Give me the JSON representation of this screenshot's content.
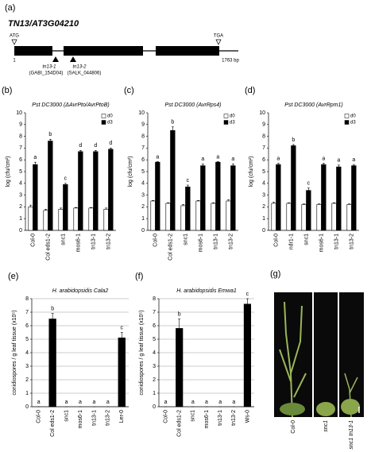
{
  "gene_diagram": {
    "label": "(a)",
    "title": "TN13/AT3G04210",
    "start_codon": "ATG",
    "stop_codon": "TGA",
    "start_pos": "1",
    "length": "1763 bp",
    "insertions": [
      {
        "name": "tn13-1",
        "line": "(GABI_154D04)"
      },
      {
        "name": "tn13-2",
        "line": "(SALK_044806)"
      }
    ]
  },
  "chart_data": [
    {
      "type": "bar",
      "label": "(b)",
      "title": "Pst DC3000 (ΔAvrPto/AvrPtoB)",
      "y_label": "log (cfu/cm²)",
      "categories": [
        "Col-0",
        "Col eds1-2",
        "snc1",
        "mos6-1",
        "tn13-1",
        "tn13-2"
      ],
      "series": [
        {
          "name": "d0",
          "color": "#ffffff",
          "values": [
            2.0,
            1.7,
            1.8,
            1.9,
            1.9,
            1.8
          ],
          "errors": [
            0.15,
            0.1,
            0.1,
            0.05,
            0.05,
            0.1
          ]
        },
        {
          "name": "d3",
          "color": "#000000",
          "values": [
            5.6,
            7.6,
            3.9,
            6.7,
            6.7,
            6.9
          ],
          "errors": [
            0.2,
            0.15,
            0.1,
            0.1,
            0.1,
            0.1
          ]
        }
      ],
      "annotations": [
        "a",
        "b",
        "c",
        "d",
        "d",
        "d"
      ],
      "ylim": [
        0,
        10
      ],
      "yticks": [
        0,
        1,
        2,
        3,
        4,
        5,
        6,
        7,
        8,
        9,
        10
      ],
      "grid": false,
      "legend": "upper right"
    },
    {
      "type": "bar",
      "label": "(c)",
      "title": "Pst DC3000 (AvrRps4)",
      "y_label": "log (cfu/cm²)",
      "categories": [
        "Col-0",
        "Col eds1-2",
        "snc1",
        "mos6-1",
        "tn13-1",
        "tn13-2"
      ],
      "series": [
        {
          "name": "d0",
          "color": "#ffffff",
          "values": [
            2.5,
            2.3,
            2.1,
            2.5,
            2.3,
            2.5
          ],
          "errors": [
            0.05,
            0.05,
            0.1,
            0.05,
            0.05,
            0.1
          ]
        },
        {
          "name": "d3",
          "color": "#000000",
          "values": [
            5.8,
            8.5,
            3.7,
            5.5,
            5.8,
            5.5
          ],
          "errors": [
            0.05,
            0.3,
            0.15,
            0.15,
            0.05,
            0.15
          ]
        }
      ],
      "annotations": [
        "a",
        "b",
        "c",
        "a",
        "a",
        "a"
      ],
      "ylim": [
        0,
        10
      ],
      "yticks": [
        0,
        1,
        2,
        3,
        4,
        5,
        6,
        7,
        8,
        9,
        10
      ],
      "grid": false,
      "legend": "upper right"
    },
    {
      "type": "bar",
      "label": "(d)",
      "title": "Pst DC3000 (AvrRpm1)",
      "y_label": "log (cfu/cm²)",
      "categories": [
        "Col-0",
        "ndr1-1",
        "snc1",
        "mos6-1",
        "tn13-1",
        "tn13-2"
      ],
      "series": [
        {
          "name": "d0",
          "color": "#ffffff",
          "values": [
            2.3,
            2.3,
            2.2,
            2.2,
            2.3,
            2.2
          ],
          "errors": [
            0.1,
            0.05,
            0.05,
            0.05,
            0.05,
            0.05
          ]
        },
        {
          "name": "d3",
          "color": "#000000",
          "values": [
            5.6,
            7.2,
            3.4,
            5.6,
            5.4,
            5.5
          ],
          "errors": [
            0.1,
            0.1,
            0.2,
            0.1,
            0.15,
            0.1
          ]
        }
      ],
      "annotations": [
        "a",
        "b",
        "c",
        "a",
        "a",
        "a"
      ],
      "ylim": [
        0,
        10
      ],
      "yticks": [
        0,
        1,
        2,
        3,
        4,
        5,
        6,
        7,
        8,
        9,
        10
      ],
      "grid": false,
      "legend": "upper right"
    },
    {
      "type": "bar",
      "label": "(e)",
      "title": "H. arabidopsidis Cala2",
      "y_label": "conidiospores / g leaf tissue (x10⁵)",
      "categories": [
        "Col-0",
        "Col eds1-2",
        "snc1",
        "mos6-1",
        "tn13-1",
        "tn13-2",
        "Ler-0"
      ],
      "values": [
        0,
        6.5,
        0,
        0,
        0,
        0,
        5.1
      ],
      "errors": [
        0,
        0.4,
        0,
        0,
        0,
        0,
        0.4
      ],
      "color": "#000000",
      "annotations": [
        "a",
        "b",
        "a",
        "a",
        "a",
        "a",
        "c"
      ],
      "ylim": [
        0,
        8
      ],
      "yticks": [
        0,
        1,
        2,
        3,
        4,
        5,
        6,
        7,
        8
      ],
      "grid": true
    },
    {
      "type": "bar",
      "label": "(f)",
      "title": "H. arabidopsidis Emwa1",
      "y_label": "conidiospores / g leaf tissue (x10⁵)",
      "categories": [
        "Col-0",
        "Col eds1-2",
        "snc1",
        "mos6-1",
        "tn13-1",
        "tn13-2",
        "Ws-0"
      ],
      "values": [
        0,
        5.8,
        0,
        0,
        0,
        0,
        7.6
      ],
      "errors": [
        0,
        0.7,
        0,
        0,
        0,
        0,
        0.4
      ],
      "color": "#000000",
      "annotations": [
        "a",
        "b",
        "a",
        "a",
        "a",
        "a",
        "c"
      ],
      "ylim": [
        0,
        8
      ],
      "yticks": [
        0,
        1,
        2,
        3,
        4,
        5,
        6,
        7,
        8
      ],
      "grid": true
    }
  ],
  "photo": {
    "label": "(g)",
    "plants": [
      "Col-0",
      "snc1",
      "snc1 tn13-1"
    ]
  }
}
